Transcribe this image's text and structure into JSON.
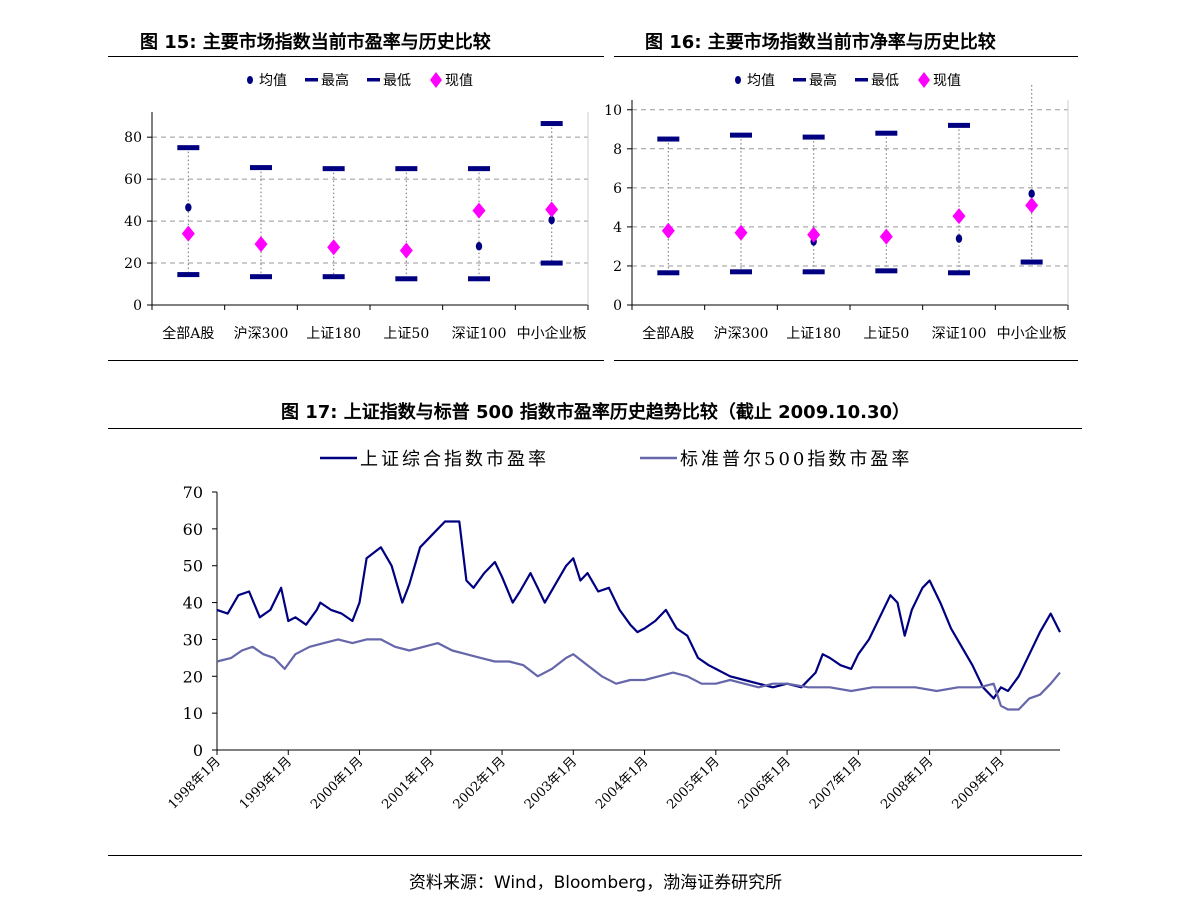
{
  "fig15": {
    "title": "图 15:  主要市场指数当前市盈率与历史比较",
    "chart_data": {
      "type": "scatter",
      "categories": [
        "全部A股",
        "沪深300",
        "上证180",
        "上证50",
        "深证100",
        "中小企业板"
      ],
      "legend": [
        "均值",
        "最高",
        "最低",
        "现值"
      ],
      "series": [
        {
          "name": "均值",
          "values": [
            46.5,
            null,
            null,
            null,
            28,
            40.5
          ]
        },
        {
          "name": "最高",
          "values": [
            75,
            65.5,
            65,
            65,
            65,
            86.5
          ]
        },
        {
          "name": "最低",
          "values": [
            14.5,
            13.5,
            13.5,
            12.5,
            12.5,
            20
          ]
        },
        {
          "name": "现值",
          "values": [
            34,
            29,
            27.5,
            26,
            45,
            45.5
          ]
        }
      ],
      "yticks": [
        "0",
        "20",
        "40",
        "60",
        "80"
      ],
      "ylim": [
        0,
        92
      ],
      "colors": {
        "均值": "#000080",
        "最高": "#000080",
        "最低": "#000080",
        "现值": "#ff00ff"
      }
    }
  },
  "fig16": {
    "title": "图 16:  主要市场指数当前市净率与历史比较",
    "chart_data": {
      "type": "scatter",
      "categories": [
        "全部A股",
        "沪深300",
        "上证180",
        "上证50",
        "深证100",
        "中小企业板"
      ],
      "legend": [
        "均值",
        "最高",
        "最低",
        "现值"
      ],
      "series": [
        {
          "name": "均值",
          "values": [
            null,
            null,
            3.25,
            null,
            3.4,
            5.7
          ]
        },
        {
          "name": "最高",
          "values": [
            8.5,
            8.7,
            8.6,
            8.8,
            9.2,
            null
          ]
        },
        {
          "name": "最低",
          "values": [
            1.65,
            1.7,
            1.7,
            1.75,
            1.65,
            2.2
          ]
        },
        {
          "name": "现值",
          "values": [
            3.8,
            3.7,
            3.6,
            3.5,
            4.55,
            5.1
          ]
        }
      ],
      "yticks": [
        "0",
        "2",
        "4",
        "6",
        "8",
        "10"
      ],
      "ylim": [
        0,
        10.5
      ],
      "colors": {
        "均值": "#000080",
        "最高": "#000080",
        "最低": "#000080",
        "现值": "#ff00ff"
      }
    }
  },
  "fig17": {
    "title": "图 17:  上证指数与标普 500 指数市盈率历史趋势比较（截止 2009.10.30）",
    "chart_data": {
      "type": "line",
      "xticks": [
        "1998年1月",
        "1999年1月",
        "2000年1月",
        "2001年1月",
        "2002年1月",
        "2003年1月",
        "2004年1月",
        "2005年1月",
        "2006年1月",
        "2007年1月",
        "2008年1月",
        "2009年1月"
      ],
      "yticks": [
        "0",
        "10",
        "20",
        "30",
        "40",
        "50",
        "60",
        "70"
      ],
      "ylim": [
        0,
        70
      ],
      "xlim": [
        1998.0,
        2009.83
      ],
      "series": [
        {
          "name": "上证综合指数市盈率",
          "color": "#000080",
          "x": [
            1998.0,
            1998.15,
            1998.3,
            1998.45,
            1998.6,
            1998.75,
            1998.9,
            1999.0,
            1999.1,
            1999.25,
            1999.4,
            1999.45,
            1999.6,
            1999.75,
            1999.9,
            2000.0,
            2000.1,
            2000.3,
            2000.45,
            2000.6,
            2000.7,
            2000.85,
            2001.0,
            2001.2,
            2001.4,
            2001.5,
            2001.6,
            2001.75,
            2001.9,
            2002.0,
            2002.15,
            2002.25,
            2002.4,
            2002.5,
            2002.6,
            2002.75,
            2002.9,
            2003.0,
            2003.1,
            2003.2,
            2003.35,
            2003.5,
            2003.65,
            2003.8,
            2003.9,
            2004.0,
            2004.15,
            2004.3,
            2004.45,
            2004.6,
            2004.75,
            2004.9,
            2005.0,
            2005.2,
            2005.4,
            2005.6,
            2005.8,
            2006.0,
            2006.2,
            2006.4,
            2006.5,
            2006.6,
            2006.75,
            2006.9,
            2007.0,
            2007.15,
            2007.3,
            2007.45,
            2007.55,
            2007.65,
            2007.75,
            2007.85,
            2007.9,
            2008.0,
            2008.15,
            2008.3,
            2008.45,
            2008.6,
            2008.75,
            2008.9,
            2009.0,
            2009.1,
            2009.25,
            2009.4,
            2009.55,
            2009.7,
            2009.83
          ],
          "y": [
            38,
            37,
            42,
            43,
            36,
            38,
            44,
            35,
            36,
            34,
            38,
            40,
            38,
            37,
            35,
            40,
            52,
            55,
            50,
            40,
            45,
            55,
            58,
            62,
            62,
            46,
            44,
            48,
            51,
            47,
            40,
            43,
            48,
            44,
            40,
            45,
            50,
            52,
            46,
            48,
            43,
            44,
            38,
            34,
            32,
            33,
            35,
            38,
            33,
            31,
            25,
            23,
            22,
            20,
            19,
            18,
            17,
            18,
            17,
            21,
            26,
            25,
            23,
            22,
            26,
            30,
            36,
            42,
            40,
            31,
            38,
            42,
            44,
            46,
            40,
            33,
            28,
            23,
            17,
            14,
            17,
            16,
            20,
            26,
            32,
            37,
            32
          ]
        },
        {
          "name": "标准普尔500指数市盈率",
          "color": "#6666aa",
          "x": [
            1998.0,
            1998.2,
            1998.35,
            1998.5,
            1998.65,
            1998.8,
            1998.95,
            1999.1,
            1999.3,
            1999.5,
            1999.7,
            1999.9,
            2000.1,
            2000.3,
            2000.5,
            2000.7,
            2000.9,
            2001.1,
            2001.3,
            2001.5,
            2001.7,
            2001.9,
            2002.1,
            2002.3,
            2002.5,
            2002.7,
            2002.9,
            2003.0,
            2003.2,
            2003.4,
            2003.6,
            2003.8,
            2004.0,
            2004.2,
            2004.4,
            2004.6,
            2004.8,
            2005.0,
            2005.2,
            2005.4,
            2005.6,
            2005.8,
            2006.0,
            2006.3,
            2006.6,
            2006.9,
            2007.2,
            2007.5,
            2007.8,
            2008.1,
            2008.4,
            2008.7,
            2008.9,
            2009.0,
            2009.1,
            2009.25,
            2009.4,
            2009.55,
            2009.7,
            2009.83
          ],
          "y": [
            24,
            25,
            27,
            28,
            26,
            25,
            22,
            26,
            28,
            29,
            30,
            29,
            30,
            30,
            28,
            27,
            28,
            29,
            27,
            26,
            25,
            24,
            24,
            23,
            20,
            22,
            25,
            26,
            23,
            20,
            18,
            19,
            19,
            20,
            21,
            20,
            18,
            18,
            19,
            18,
            17,
            18,
            18,
            17,
            17,
            16,
            17,
            17,
            17,
            16,
            17,
            17,
            18,
            12,
            11,
            11,
            14,
            15,
            18,
            21
          ]
        }
      ]
    }
  },
  "source": "资料来源：Wind，Bloomberg，渤海证券研究所"
}
